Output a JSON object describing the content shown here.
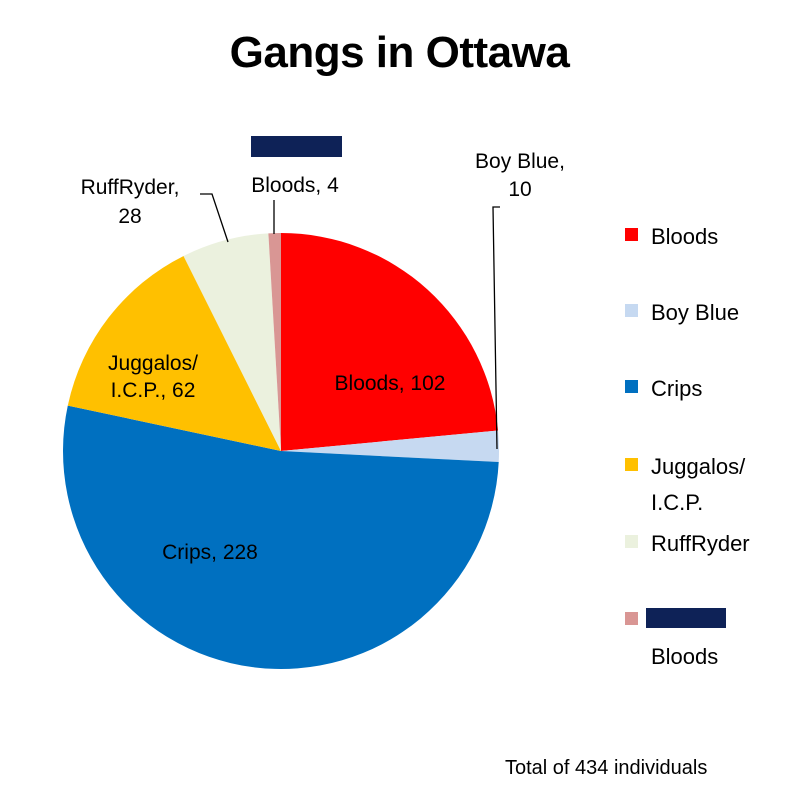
{
  "title": "Gangs in Ottawa",
  "footnote": "Total of 434 individuals",
  "chart_data": {
    "type": "pie",
    "title": "Gangs in Ottawa",
    "total": 434,
    "slices": [
      {
        "name": "Bloods",
        "value": 102,
        "label": [
          "Bloods, 102"
        ],
        "color": "#ff0000"
      },
      {
        "name": "Boy Blue",
        "value": 10,
        "label": [
          "Boy Blue,",
          "10"
        ],
        "color": "#c6d9f1"
      },
      {
        "name": "Crips",
        "value": 228,
        "label": [
          "Crips, 228"
        ],
        "color": "#0070c0"
      },
      {
        "name": "Juggalos/ I.C.P.",
        "value": 62,
        "label": [
          "Juggalos/",
          "I.C.P., 62"
        ],
        "color": "#ffc000"
      },
      {
        "name": "RuffRyder",
        "value": 28,
        "label": [
          "RuffRyder,",
          "28"
        ],
        "color": "#ebf1de"
      },
      {
        "name": "Bloods",
        "value": 4,
        "label": [
          "Bloods, 4"
        ],
        "color": "#d99694"
      }
    ],
    "legend": {
      "position": "right",
      "entries": [
        {
          "lines": [
            "Bloods"
          ],
          "color": "#ff0000"
        },
        {
          "lines": [
            "Boy Blue"
          ],
          "color": "#c6d9f1"
        },
        {
          "lines": [
            "Crips"
          ],
          "color": "#0070c0"
        },
        {
          "lines": [
            "Juggalos/",
            "I.C.P."
          ],
          "color": "#ffc000"
        },
        {
          "lines": [
            "RuffRyder"
          ],
          "color": "#ebf1de"
        },
        {
          "lines": [
            "",
            "Bloods"
          ],
          "color": "#d99694"
        }
      ]
    },
    "redaction_color": "#0e2257"
  }
}
